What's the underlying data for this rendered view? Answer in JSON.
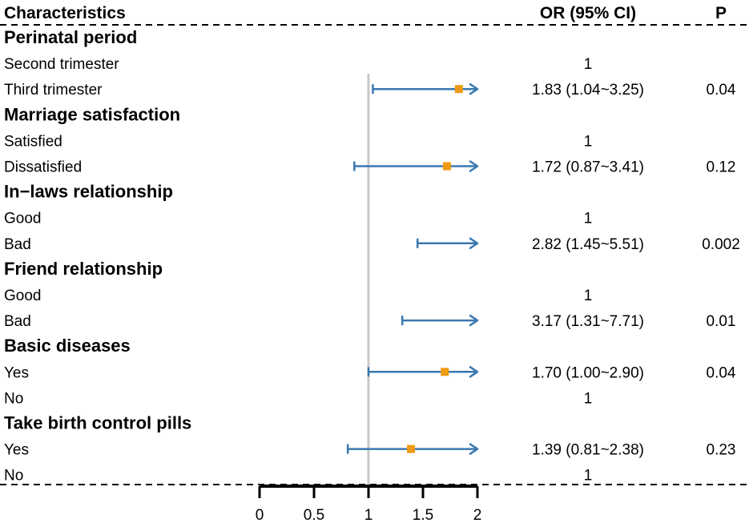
{
  "chart_data": {
    "type": "forest",
    "headers": {
      "characteristics": "Characteristics",
      "or": "OR (95% CI)",
      "p": "P"
    },
    "colors": {
      "ci_line": "#3b78b0",
      "point": "#ef9a14",
      "reference_line": "#c8c8c8",
      "axis": "#000000"
    },
    "x_axis": {
      "range": [
        0,
        2
      ],
      "ticks": [
        0,
        0.5,
        1,
        1.5,
        2
      ],
      "tick_labels": [
        "0",
        "0.5",
        "1",
        "1.5",
        "2"
      ],
      "reference": 1
    },
    "rows": [
      {
        "kind": "group",
        "label": "Perinatal period"
      },
      {
        "kind": "level",
        "label": "Second trimester",
        "or_text": "1",
        "p": ""
      },
      {
        "kind": "level",
        "label": "Third trimester",
        "or": 1.83,
        "lo": 1.04,
        "hi": 3.25,
        "or_text": "1.83 (1.04~3.25)",
        "p": "0.04"
      },
      {
        "kind": "group",
        "label": "Marriage satisfaction"
      },
      {
        "kind": "level",
        "label": "Satisfied",
        "or_text": "1",
        "p": ""
      },
      {
        "kind": "level",
        "label": "Dissatisfied",
        "or": 1.72,
        "lo": 0.87,
        "hi": 3.41,
        "or_text": "1.72 (0.87~3.41)",
        "p": "0.12"
      },
      {
        "kind": "group",
        "label": "In−laws relationship"
      },
      {
        "kind": "level",
        "label": "Good",
        "or_text": "1",
        "p": ""
      },
      {
        "kind": "level",
        "label": "Bad",
        "or": 2.82,
        "lo": 1.45,
        "hi": 5.51,
        "or_text": "2.82 (1.45~5.51)",
        "p": "0.002"
      },
      {
        "kind": "group",
        "label": "Friend relationship"
      },
      {
        "kind": "level",
        "label": "Good",
        "or_text": "1",
        "p": ""
      },
      {
        "kind": "level",
        "label": "Bad",
        "or": 3.17,
        "lo": 1.31,
        "hi": 7.71,
        "or_text": "3.17 (1.31~7.71)",
        "p": "0.01"
      },
      {
        "kind": "group",
        "label": "Basic diseases"
      },
      {
        "kind": "level",
        "label": "Yes",
        "or": 1.7,
        "lo": 1.0,
        "hi": 2.9,
        "or_text": "1.70 (1.00~2.90)",
        "p": "0.04"
      },
      {
        "kind": "level",
        "label": "No",
        "or_text": "1",
        "p": ""
      },
      {
        "kind": "group",
        "label": "Take birth control pills"
      },
      {
        "kind": "level",
        "label": "Yes",
        "or": 1.39,
        "lo": 0.81,
        "hi": 2.38,
        "or_text": "1.39 (0.81~2.38)",
        "p": "0.23"
      },
      {
        "kind": "level",
        "label": "No",
        "or_text": "1",
        "p": ""
      }
    ]
  }
}
